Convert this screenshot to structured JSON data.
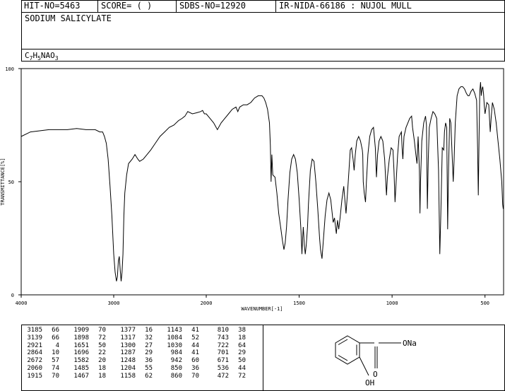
{
  "header": {
    "hit_no": "HIT-NO=5463",
    "score": "SCORE=  (   )",
    "sdbs_no": "SDBS-NO=12920",
    "ir_nida": "IR-NIDA-66186 : NUJOL MULL"
  },
  "compound": {
    "name": "SODIUM SALICYLATE",
    "formula_parts": [
      "C",
      "7",
      "H",
      "5",
      "NAO",
      "3"
    ]
  },
  "chart_data": {
    "type": "line",
    "title": "",
    "xlabel": "WAVENUMBER[-1]",
    "ylabel": "TRANSMITTANCE[%]",
    "xlim": [
      4000,
      400
    ],
    "ylim": [
      0,
      100
    ],
    "x_ticks": [
      "4000",
      "3000",
      "2000",
      "1500",
      "1000",
      "500"
    ],
    "y_ticks": [
      "100",
      "50",
      "0"
    ],
    "series": [
      {
        "points": [
          [
            4000,
            70
          ],
          [
            3900,
            72
          ],
          [
            3800,
            72.5
          ],
          [
            3700,
            73
          ],
          [
            3600,
            73
          ],
          [
            3500,
            73
          ],
          [
            3400,
            73.5
          ],
          [
            3300,
            73
          ],
          [
            3200,
            73
          ],
          [
            3150,
            72
          ],
          [
            3120,
            72
          ],
          [
            3100,
            70
          ],
          [
            3080,
            67
          ],
          [
            3060,
            60
          ],
          [
            3040,
            48
          ],
          [
            3020,
            35
          ],
          [
            3000,
            18
          ],
          [
            2985,
            10
          ],
          [
            2970,
            6
          ],
          [
            2960,
            8
          ],
          [
            2950,
            15
          ],
          [
            2940,
            17
          ],
          [
            2930,
            11
          ],
          [
            2920,
            6
          ],
          [
            2910,
            10
          ],
          [
            2900,
            18
          ],
          [
            2890,
            35
          ],
          [
            2880,
            45
          ],
          [
            2860,
            53
          ],
          [
            2840,
            58
          ],
          [
            2800,
            60
          ],
          [
            2770,
            62
          ],
          [
            2740,
            60
          ],
          [
            2720,
            59
          ],
          [
            2680,
            60
          ],
          [
            2640,
            62
          ],
          [
            2600,
            64
          ],
          [
            2550,
            67
          ],
          [
            2500,
            70
          ],
          [
            2450,
            72
          ],
          [
            2400,
            74
          ],
          [
            2350,
            75
          ],
          [
            2300,
            77
          ],
          [
            2260,
            78
          ],
          [
            2230,
            79
          ],
          [
            2200,
            81
          ],
          [
            2150,
            80
          ],
          [
            2100,
            80.5
          ],
          [
            2060,
            81
          ],
          [
            2040,
            81.5
          ],
          [
            2020,
            80
          ],
          [
            2000,
            80
          ],
          [
            1980,
            78
          ],
          [
            1960,
            76
          ],
          [
            1940,
            73
          ],
          [
            1920,
            76
          ],
          [
            1900,
            78
          ],
          [
            1880,
            80
          ],
          [
            1860,
            82
          ],
          [
            1840,
            83
          ],
          [
            1830,
            81
          ],
          [
            1820,
            83
          ],
          [
            1800,
            84
          ],
          [
            1780,
            84
          ],
          [
            1760,
            85
          ],
          [
            1740,
            87
          ],
          [
            1720,
            88
          ],
          [
            1700,
            88
          ],
          [
            1690,
            87
          ],
          [
            1680,
            85
          ],
          [
            1670,
            82
          ],
          [
            1660,
            76
          ],
          [
            1655,
            66
          ],
          [
            1651,
            50
          ],
          [
            1647,
            62
          ],
          [
            1642,
            53
          ],
          [
            1630,
            52
          ],
          [
            1620,
            45
          ],
          [
            1610,
            36
          ],
          [
            1600,
            30
          ],
          [
            1590,
            24
          ],
          [
            1582,
            20
          ],
          [
            1575,
            23
          ],
          [
            1568,
            30
          ],
          [
            1560,
            42
          ],
          [
            1550,
            54
          ],
          [
            1540,
            60
          ],
          [
            1530,
            62
          ],
          [
            1520,
            60
          ],
          [
            1510,
            54
          ],
          [
            1500,
            42
          ],
          [
            1490,
            28
          ],
          [
            1485,
            18
          ],
          [
            1482,
            24
          ],
          [
            1478,
            30
          ],
          [
            1472,
            22
          ],
          [
            1467,
            18
          ],
          [
            1462,
            22
          ],
          [
            1455,
            30
          ],
          [
            1450,
            40
          ],
          [
            1440,
            55
          ],
          [
            1430,
            60
          ],
          [
            1420,
            59
          ],
          [
            1410,
            50
          ],
          [
            1400,
            38
          ],
          [
            1390,
            25
          ],
          [
            1385,
            20
          ],
          [
            1377,
            16
          ],
          [
            1370,
            24
          ],
          [
            1360,
            35
          ],
          [
            1350,
            42
          ],
          [
            1340,
            45
          ],
          [
            1330,
            42
          ],
          [
            1317,
            32
          ],
          [
            1310,
            34
          ],
          [
            1300,
            27
          ],
          [
            1294,
            33
          ],
          [
            1287,
            29
          ],
          [
            1280,
            34
          ],
          [
            1270,
            42
          ],
          [
            1260,
            48
          ],
          [
            1248,
            36
          ],
          [
            1240,
            45
          ],
          [
            1232,
            55
          ],
          [
            1225,
            64
          ],
          [
            1218,
            65
          ],
          [
            1210,
            60
          ],
          [
            1204,
            55
          ],
          [
            1198,
            62
          ],
          [
            1190,
            68
          ],
          [
            1180,
            70
          ],
          [
            1170,
            68
          ],
          [
            1160,
            64
          ],
          [
            1158,
            62
          ],
          [
            1155,
            50
          ],
          [
            1150,
            45
          ],
          [
            1143,
            41
          ],
          [
            1138,
            50
          ],
          [
            1130,
            62
          ],
          [
            1120,
            70
          ],
          [
            1110,
            73
          ],
          [
            1100,
            74
          ],
          [
            1090,
            65
          ],
          [
            1084,
            52
          ],
          [
            1078,
            62
          ],
          [
            1070,
            68
          ],
          [
            1060,
            70
          ],
          [
            1050,
            68
          ],
          [
            1040,
            60
          ],
          [
            1034,
            50
          ],
          [
            1030,
            44
          ],
          [
            1025,
            52
          ],
          [
            1015,
            60
          ],
          [
            1005,
            65
          ],
          [
            995,
            64
          ],
          [
            990,
            55
          ],
          [
            984,
            41
          ],
          [
            978,
            50
          ],
          [
            970,
            62
          ],
          [
            962,
            70
          ],
          [
            950,
            72
          ],
          [
            946,
            65
          ],
          [
            942,
            60
          ],
          [
            936,
            70
          ],
          [
            925,
            74
          ],
          [
            915,
            76
          ],
          [
            905,
            78
          ],
          [
            895,
            79
          ],
          [
            890,
            74
          ],
          [
            880,
            68
          ],
          [
            872,
            62
          ],
          [
            866,
            58
          ],
          [
            860,
            70
          ],
          [
            853,
            55
          ],
          [
            850,
            36
          ],
          [
            847,
            50
          ],
          [
            840,
            68
          ],
          [
            830,
            76
          ],
          [
            820,
            79
          ],
          [
            815,
            75
          ],
          [
            810,
            38
          ],
          [
            805,
            60
          ],
          [
            800,
            74
          ],
          [
            790,
            78
          ],
          [
            780,
            81
          ],
          [
            770,
            80
          ],
          [
            760,
            78
          ],
          [
            750,
            55
          ],
          [
            743,
            18
          ],
          [
            738,
            35
          ],
          [
            730,
            65
          ],
          [
            722,
            64
          ],
          [
            718,
            72
          ],
          [
            712,
            76
          ],
          [
            706,
            74
          ],
          [
            701,
            29
          ],
          [
            696,
            56
          ],
          [
            690,
            78
          ],
          [
            684,
            76
          ],
          [
            676,
            60
          ],
          [
            671,
            50
          ],
          [
            666,
            60
          ],
          [
            660,
            76
          ],
          [
            650,
            88
          ],
          [
            640,
            91
          ],
          [
            630,
            92
          ],
          [
            620,
            92
          ],
          [
            610,
            91
          ],
          [
            600,
            89
          ],
          [
            592,
            88
          ],
          [
            585,
            88
          ],
          [
            575,
            90
          ],
          [
            565,
            91
          ],
          [
            555,
            89
          ],
          [
            545,
            86
          ],
          [
            540,
            65
          ],
          [
            536,
            44
          ],
          [
            532,
            70
          ],
          [
            528,
            90
          ],
          [
            524,
            94
          ],
          [
            520,
            88
          ],
          [
            516,
            91
          ],
          [
            512,
            92
          ],
          [
            508,
            89
          ],
          [
            504,
            84
          ],
          [
            500,
            80
          ],
          [
            490,
            85
          ],
          [
            480,
            84
          ],
          [
            472,
            72
          ],
          [
            466,
            79
          ],
          [
            460,
            85
          ],
          [
            450,
            82
          ],
          [
            440,
            76
          ],
          [
            430,
            68
          ],
          [
            420,
            60
          ],
          [
            410,
            50
          ],
          [
            405,
            40
          ],
          [
            402,
            38
          ]
        ]
      }
    ]
  },
  "peak_table": [
    [
      [
        "3185",
        "66"
      ],
      [
        "3139",
        "66"
      ],
      [
        "2921",
        "4"
      ],
      [
        "2864",
        "10"
      ],
      [
        "2672",
        "57"
      ],
      [
        "2060",
        "74"
      ],
      [
        "1915",
        "70"
      ]
    ],
    [
      [
        "1909",
        "70"
      ],
      [
        "1898",
        "72"
      ],
      [
        "1651",
        "50"
      ],
      [
        "1696",
        "22"
      ],
      [
        "1582",
        "20"
      ],
      [
        "1485",
        "18"
      ],
      [
        "1467",
        "18"
      ]
    ],
    [
      [
        "1377",
        "16"
      ],
      [
        "1317",
        "32"
      ],
      [
        "1300",
        "27"
      ],
      [
        "1287",
        "29"
      ],
      [
        "1248",
        "36"
      ],
      [
        "1204",
        "55"
      ],
      [
        "1158",
        "62"
      ]
    ],
    [
      [
        "1143",
        "41"
      ],
      [
        "1084",
        "52"
      ],
      [
        "1030",
        "44"
      ],
      [
        "984",
        "41"
      ],
      [
        "942",
        "60"
      ],
      [
        "850",
        "36"
      ],
      [
        "860",
        "70"
      ]
    ],
    [
      [
        "810",
        "38"
      ],
      [
        "743",
        "18"
      ],
      [
        "722",
        "64"
      ],
      [
        "701",
        "29"
      ],
      [
        "671",
        "50"
      ],
      [
        "536",
        "44"
      ],
      [
        "472",
        "72"
      ]
    ]
  ],
  "structure": {
    "labels": [
      "ONa",
      "O",
      "OH"
    ]
  }
}
